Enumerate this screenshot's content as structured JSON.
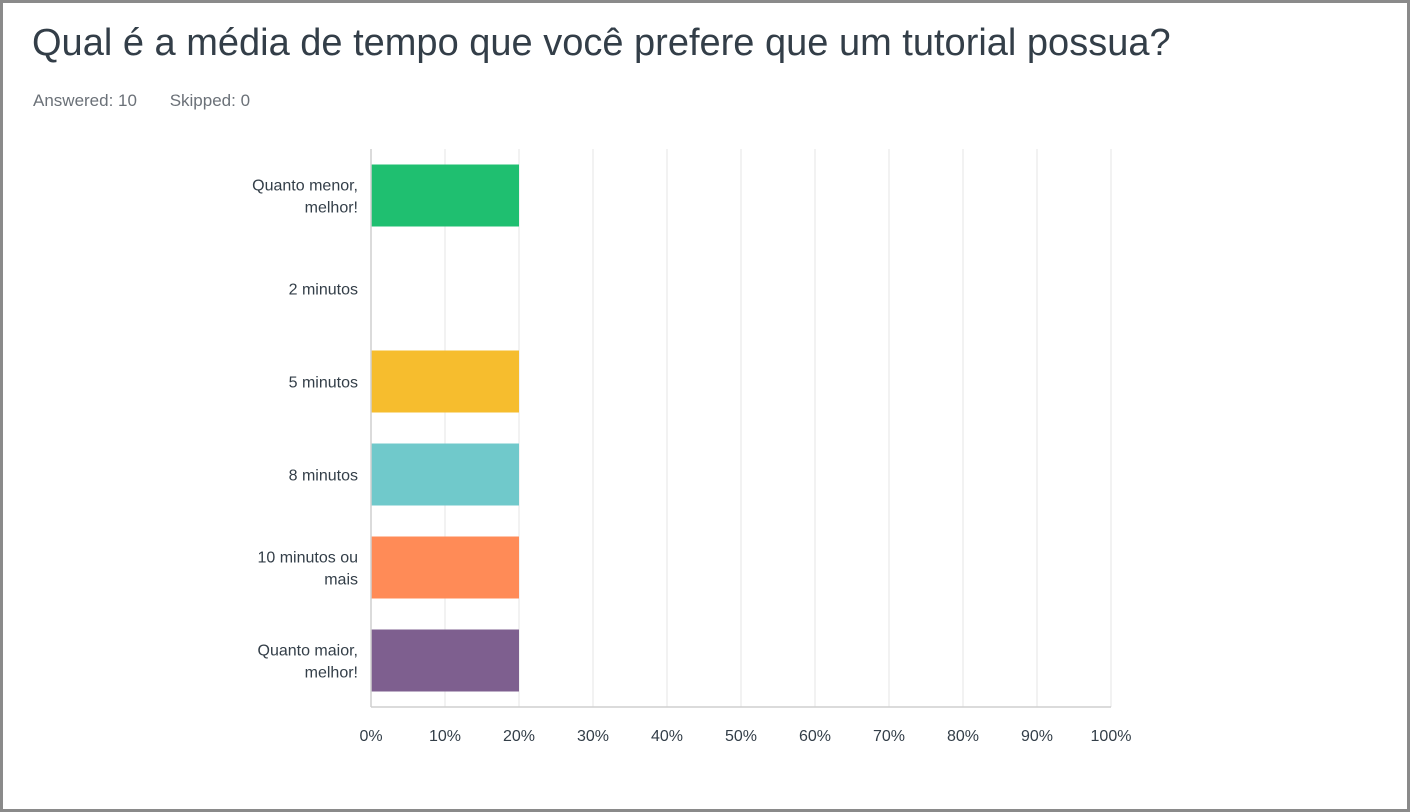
{
  "header": {
    "title": "Qual é a média de tempo que você prefere que um tutorial possua?",
    "answered": "Answered: 10",
    "skipped": "Skipped: 0"
  },
  "chart_data": {
    "type": "bar",
    "orientation": "horizontal",
    "categories": [
      "Quanto menor, melhor!",
      "2 minutos",
      "5 minutos",
      "8 minutos",
      "10 minutos ou mais",
      "Quanto maior, melhor!"
    ],
    "values": [
      20,
      0,
      20,
      20,
      20,
      20
    ],
    "colors": [
      "#1fbf70",
      "#d0d0d0",
      "#f6bd2e",
      "#70c9cb",
      "#ff8b57",
      "#7e5f8f"
    ],
    "xlim": [
      0,
      100
    ],
    "xticks": [
      "0%",
      "10%",
      "20%",
      "30%",
      "40%",
      "50%",
      "60%",
      "70%",
      "80%",
      "90%",
      "100%"
    ],
    "grid": true,
    "title": "",
    "xlabel": "",
    "ylabel": ""
  }
}
